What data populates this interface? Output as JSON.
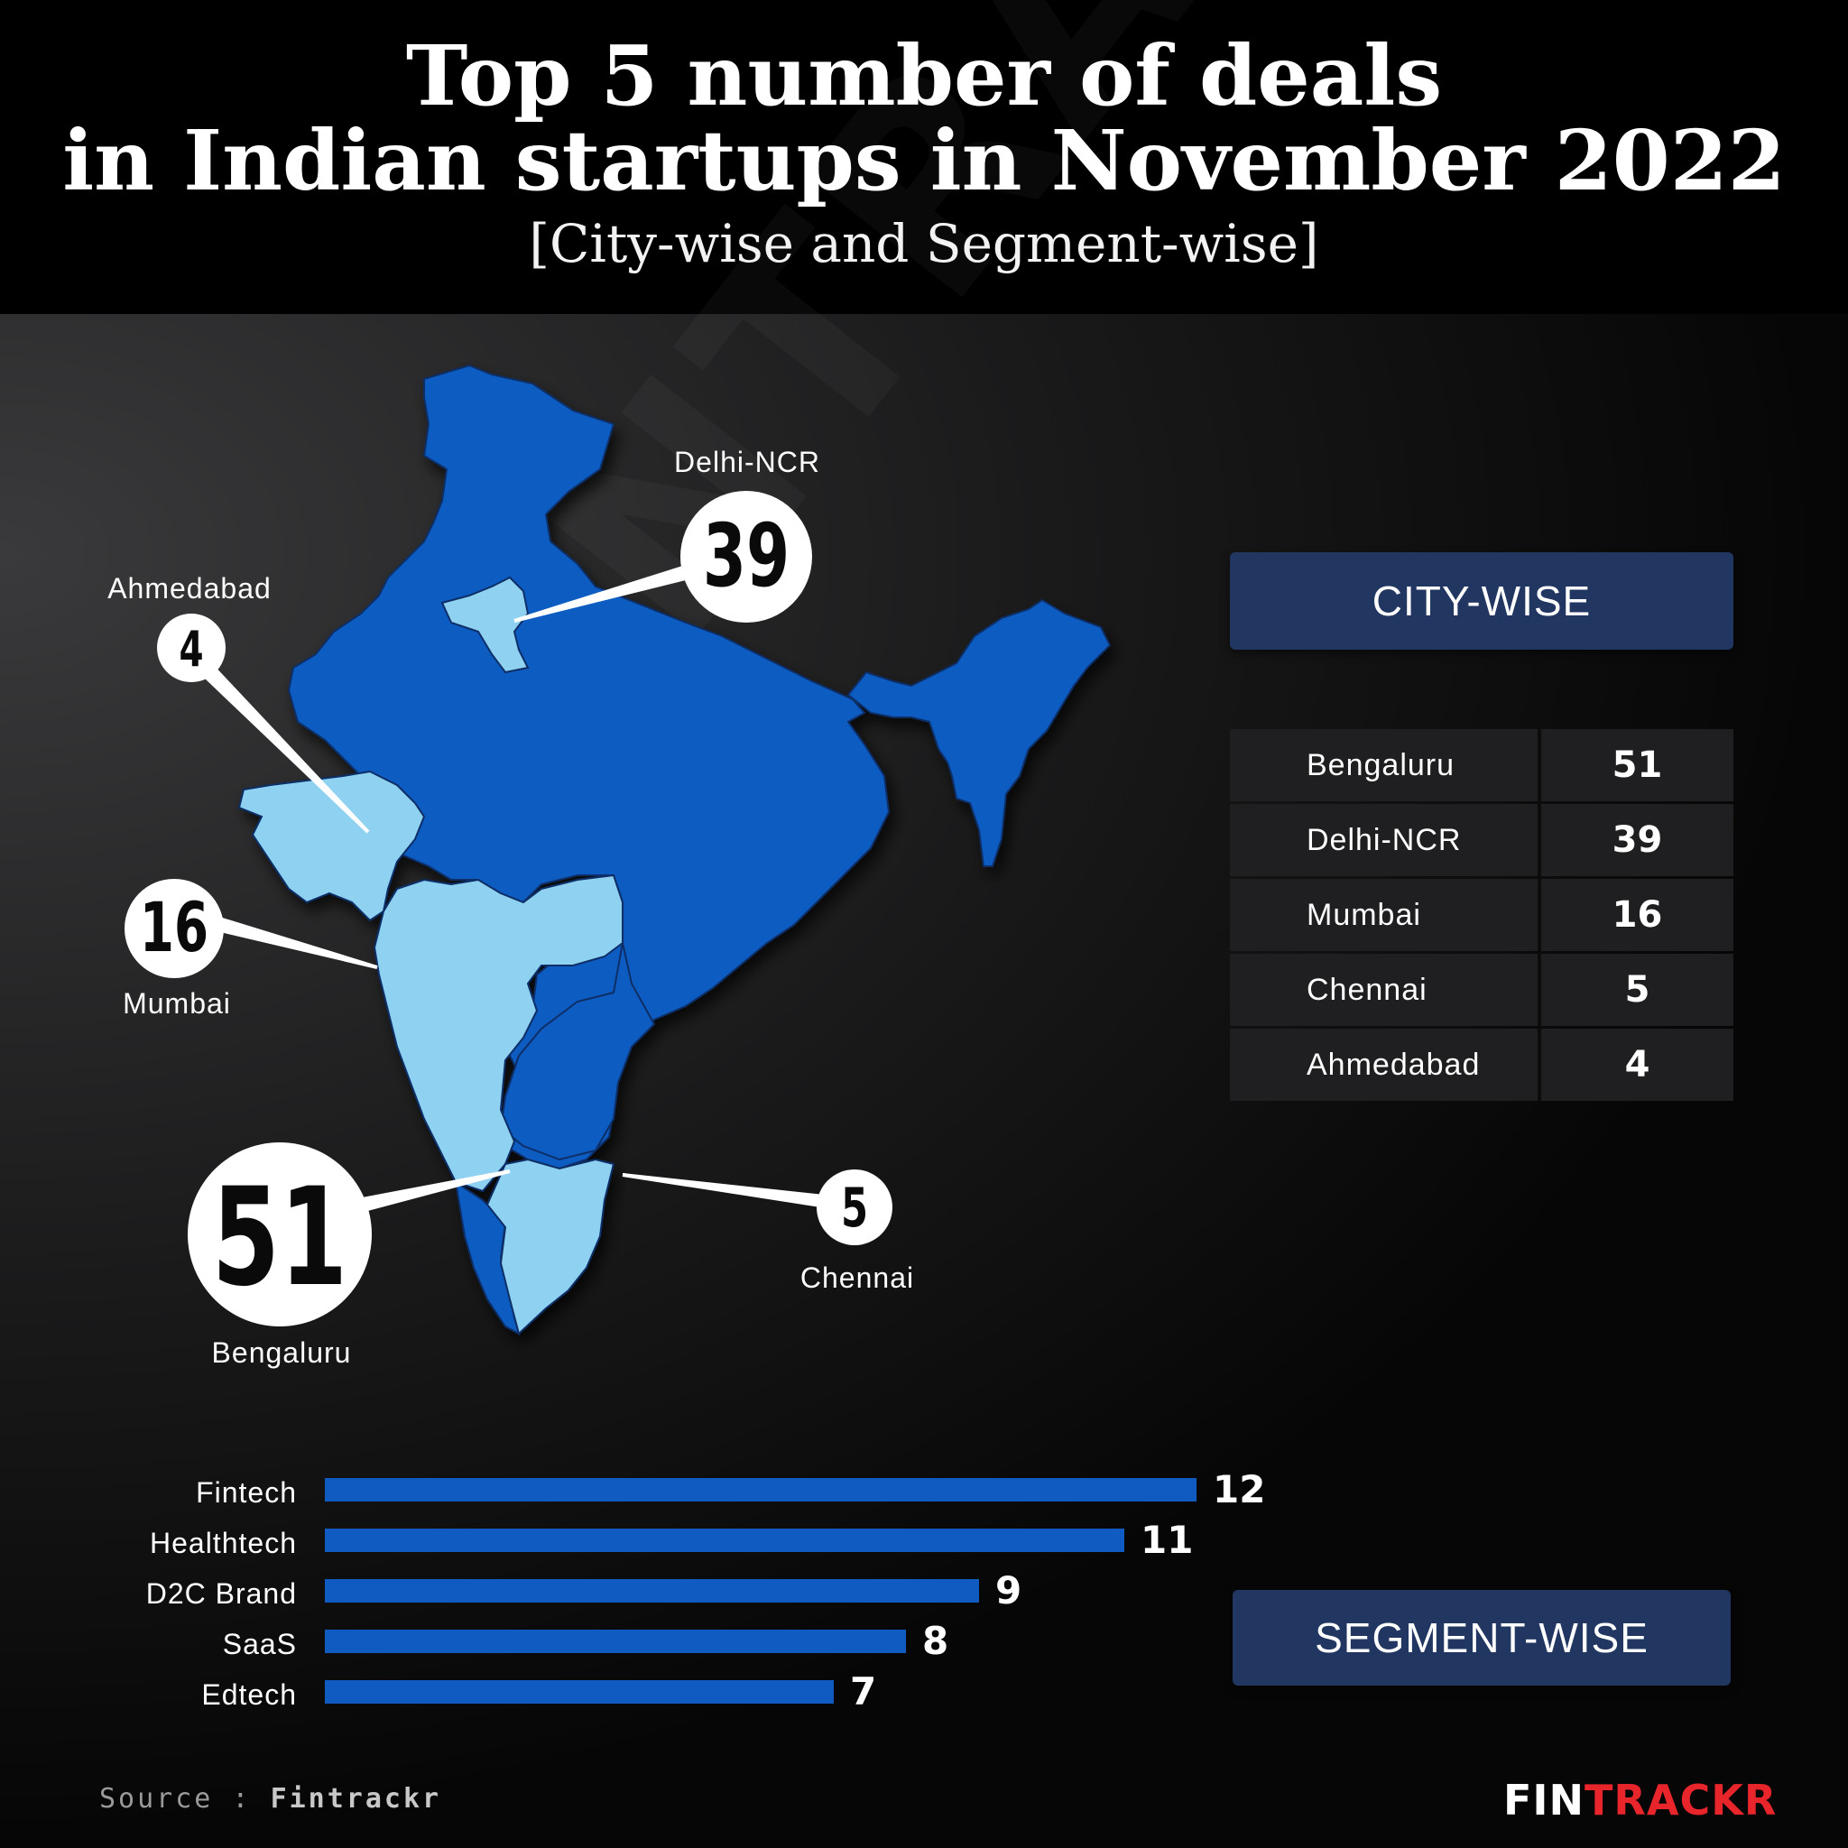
{
  "title_line1": "Top 5 number of deals",
  "title_line2": "in Indian startups in November 2022",
  "subtitle": "[City-wise and Segment-wise]",
  "watermark": "FINTRACKR",
  "city_panel": {
    "heading": "CITY-WISE"
  },
  "segment_panel": {
    "heading": "SEGMENT-WISE"
  },
  "source": {
    "prefix": "Source : ",
    "name": "Fintrackr"
  },
  "logo": {
    "part1": "FIN",
    "part2": "TRACKR"
  },
  "colors": {
    "map_dark": "#0b5bc2",
    "map_light": "#8fd1f1",
    "bar": "#0f5bc1",
    "panel": "#213660",
    "logo_red": "#e8252b"
  },
  "map_pins": [
    {
      "city": "Delhi-NCR",
      "value": "39"
    },
    {
      "city": "Ahmedabad",
      "value": "4"
    },
    {
      "city": "Mumbai",
      "value": "16"
    },
    {
      "city": "Bengaluru",
      "value": "51"
    },
    {
      "city": "Chennai",
      "value": "5"
    }
  ],
  "chart_data": [
    {
      "type": "table",
      "title": "CITY-WISE",
      "categories": [
        "Bengaluru",
        "Delhi-NCR",
        "Mumbai",
        "Chennai",
        "Ahmedabad"
      ],
      "values": [
        51,
        39,
        16,
        5,
        4
      ]
    },
    {
      "type": "bar",
      "orientation": "horizontal",
      "title": "SEGMENT-WISE",
      "categories": [
        "Fintech",
        "Healthtech",
        "D2C Brand",
        "SaaS",
        "Edtech"
      ],
      "values": [
        12,
        11,
        9,
        8,
        7
      ],
      "xlim": [
        0,
        12
      ]
    }
  ]
}
